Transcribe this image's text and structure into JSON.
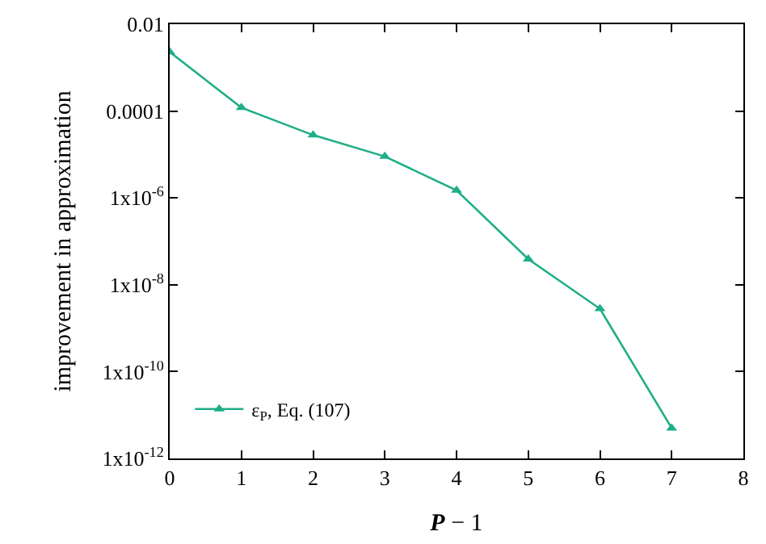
{
  "chart_data": {
    "type": "line",
    "xlabel": "P − 1",
    "ylabel": "improvement in approximation",
    "log": "y",
    "xlim": [
      0,
      8
    ],
    "xticks": [
      0,
      1,
      2,
      3,
      4,
      5,
      6,
      7,
      8
    ],
    "ylim": [
      1e-12,
      0.01
    ],
    "yticks": [
      {
        "value": 0.01,
        "label": "0.01"
      },
      {
        "value": 0.0001,
        "label": "0.0001"
      },
      {
        "value": 1e-06,
        "label": "1x10$^{-6}$"
      },
      {
        "value": 1e-08,
        "label": "1x10$^{-8}$"
      },
      {
        "value": 1e-10,
        "label": "1x10$^{-10}$"
      },
      {
        "value": 1e-12,
        "label": "1x10$^{-12}$"
      }
    ],
    "x": [
      0,
      1,
      2,
      3,
      4,
      5,
      6,
      7
    ],
    "series": [
      {
        "name": "ε$_{P}$, Eq. (107)",
        "color": "#1fae88",
        "values": [
          0.0023,
          0.00012,
          2.8e-05,
          9e-06,
          1.5e-06,
          3.9e-08,
          2.8e-09,
          5e-12
        ]
      }
    ],
    "marker": "triangle",
    "line_style": "solid",
    "legend": "bottom left"
  }
}
